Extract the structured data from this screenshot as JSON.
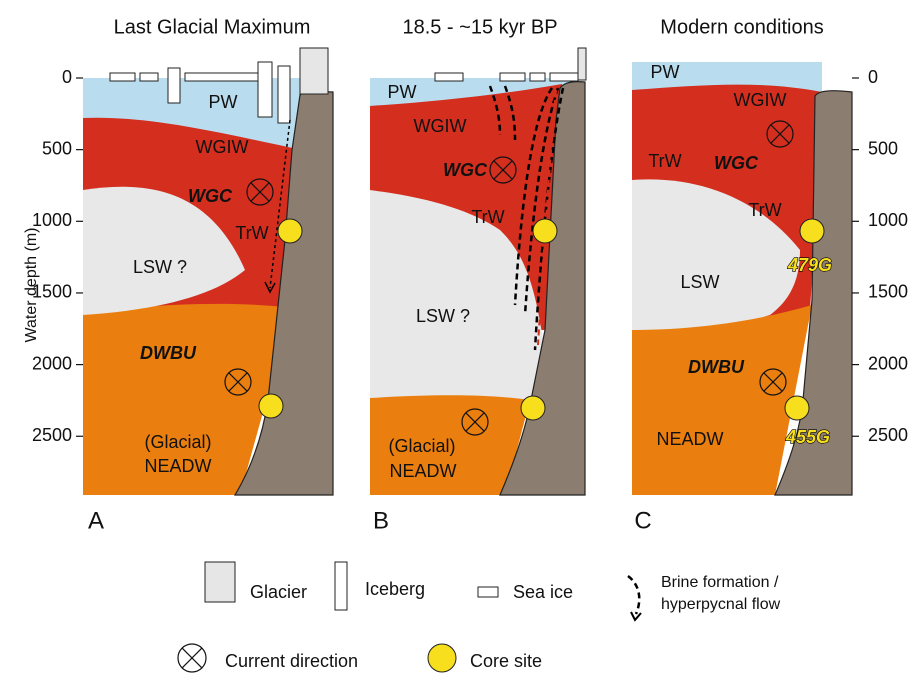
{
  "titles": [
    "Last Glacial Maximum",
    "18.5 - ~15 kyr BP",
    "Modern conditions"
  ],
  "y_axis": {
    "label": "Water depth (m)",
    "ticks": [
      0,
      500,
      1000,
      1500,
      2000,
      2500
    ]
  },
  "panels": [
    {
      "letter": "A",
      "water_masses": [
        "PW",
        "WGIW",
        "WGC",
        "TrW",
        "LSW ?",
        "DWBU",
        "(Glacial)",
        "NEADW"
      ]
    },
    {
      "letter": "B",
      "water_masses": [
        "PW",
        "WGIW",
        "WGC",
        "TrW",
        "LSW ?",
        "(Glacial)",
        "NEADW"
      ]
    },
    {
      "letter": "C",
      "water_masses": [
        "PW",
        "WGIW",
        "TrW",
        "WGC",
        "TrW",
        "LSW",
        "DWBU",
        "NEADW"
      ],
      "cores": [
        "479G",
        "455G"
      ]
    }
  ],
  "legend": [
    "Glacier",
    "Iceberg",
    "Sea ice",
    "Brine formation /",
    "hyperpycnal flow",
    "Current direction",
    "Core site"
  ]
}
